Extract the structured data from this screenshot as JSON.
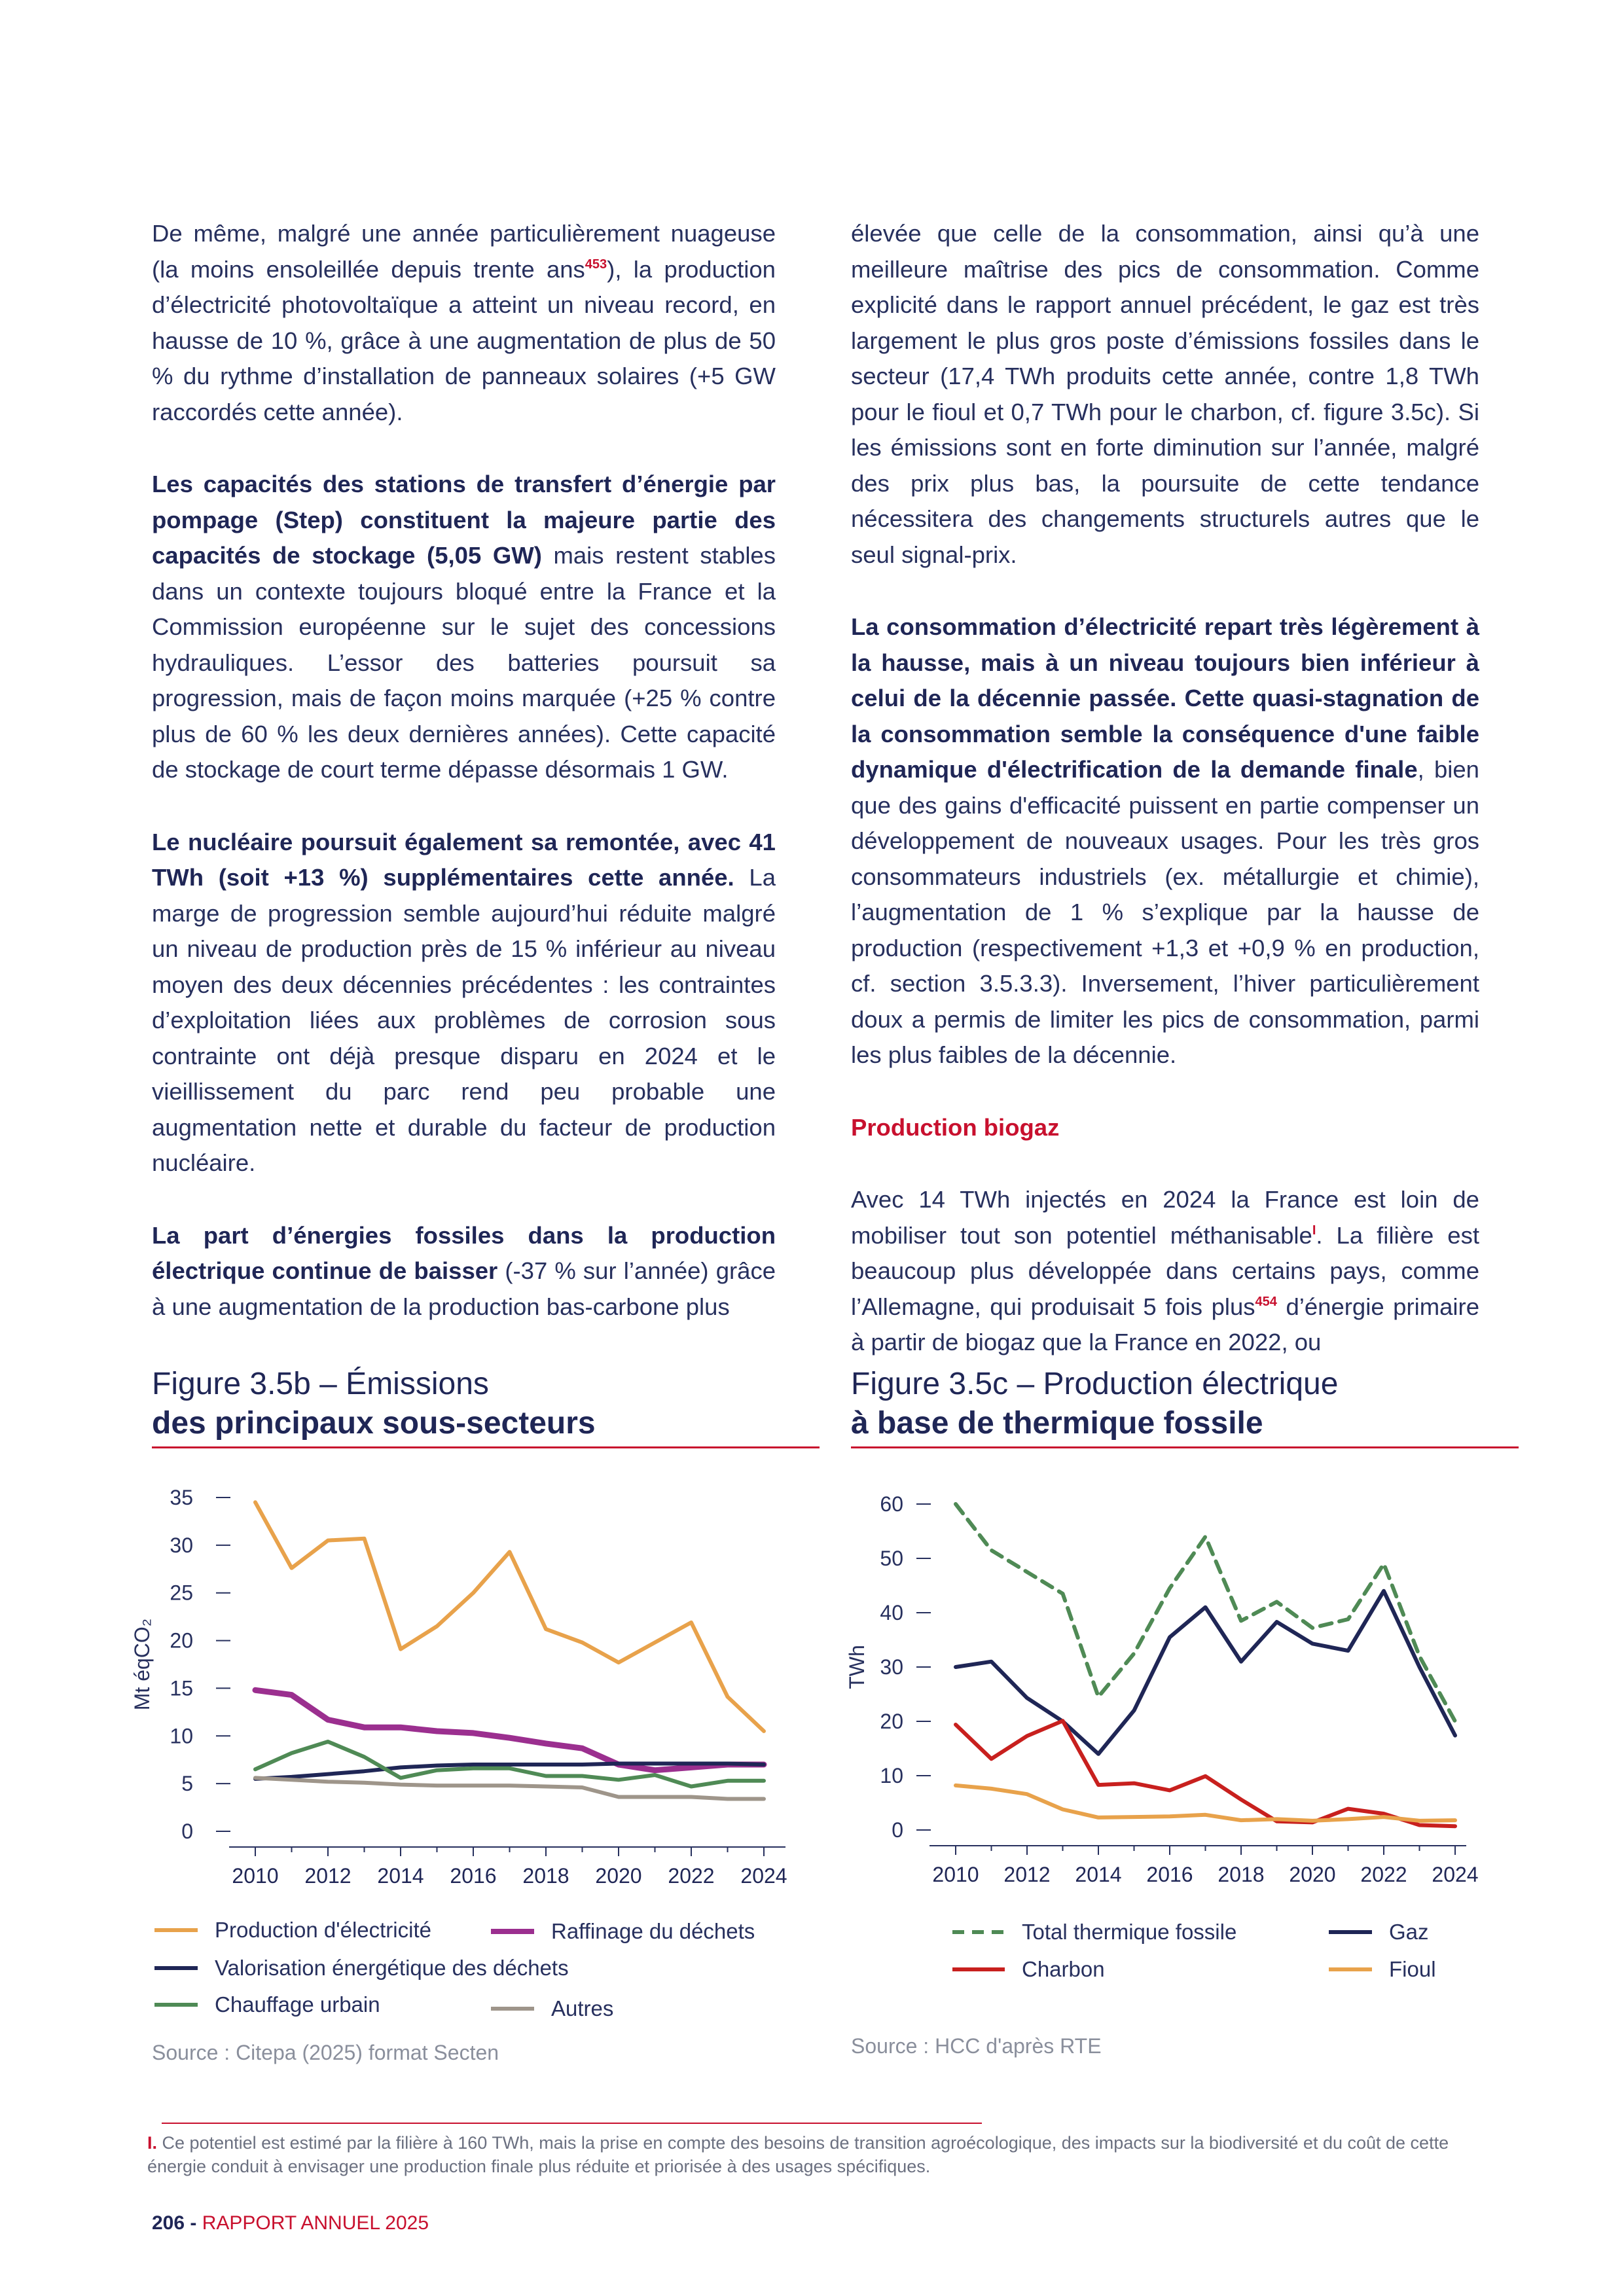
{
  "left_column": {
    "p1": "De même, malgré une année particulièrement nuageuse (la moins ensoleillée depuis trente ans",
    "p1_ref": "453",
    "p1_rest": "), la production d’électricité photovoltaïque a atteint un niveau record, en hausse de 10 %, grâce à une augmentation de plus de 50 % du rythme d’installation de panneaux solaires (+5 GW raccordés cette année).",
    "p2_bold": "Les capacités des stations de transfert d’énergie par pompage (Step) constituent la majeure partie des capacités de stockage (5,05 GW)",
    "p2_rest": " mais restent stables dans un contexte toujours bloqué entre la France et la Commission européenne sur le sujet des concessions hydrauliques. L’essor des batteries poursuit sa progression, mais de façon moins marquée (+25 % contre plus de 60 % les deux dernières années). Cette capacité de stockage de court terme dépasse désormais 1 GW.",
    "p3_bold": "Le nucléaire poursuit également sa remontée, avec 41 TWh (soit +13 %) supplémentaires cette année.",
    "p3_rest": " La marge de progression semble aujourd’hui réduite malgré un niveau de production près de 15 % inférieur au niveau moyen des deux décennies précédentes : les contraintes d’exploitation liées aux problèmes de corrosion sous contrainte ont déjà presque disparu en 2024 et le vieillissement du parc rend peu probable une augmentation nette et durable du facteur de production nucléaire.",
    "p4_bold": "La part d’énergies fossiles dans la production électrique continue de baisser",
    "p4_rest": " (-37 % sur l’année) grâce à une augmentation de la production bas-carbone plus"
  },
  "right_column": {
    "p1": "élevée que celle de la consommation, ainsi qu’à une meilleure maîtrise des pics de consommation. Comme explicité dans le rapport annuel précédent, le gaz est très largement le plus gros poste d’émissions fossiles dans le secteur (17,4 TWh produits cette année, contre 1,8 TWh pour le fioul et 0,7 TWh pour le charbon, cf. figure 3.5c). Si les émissions sont en forte diminution sur l’année, malgré des prix plus bas, la poursuite de cette tendance nécessitera des changements structurels autres que le seul signal-prix.",
    "p2_bold": "La consommation d’électricité repart très légèrement à la hausse, mais à un niveau toujours bien inférieur à celui de la décennie passée. Cette quasi-stagnation de la consommation semble la conséquence d'une faible dynamique d'électrification de la demande finale",
    "p2_rest": ", bien que des gains d'efficacité puissent en partie compenser un développement de nouveaux usages. Pour les très gros consommateurs industriels (ex. métallurgie et chimie), l’augmentation de 1 % s’explique par la hausse de production (respectivement +1,3 et +0,9 % en production, cf. section 3.5.3.3). Inversement, l’hiver particulièrement doux a permis de limiter les pics de consommation, parmi les plus faibles de la décennie.",
    "subhead": "Production biogaz",
    "p3_a": "Avec 14 TWh injectés en 2024 la France est loin de mobiliser tout son potentiel méthanisable",
    "p3_ref1": "I",
    "p3_b": ". La filière est beaucoup plus développée dans certains pays, comme l’Allemagne, qui produisait 5 fois plus",
    "p3_ref2": "454",
    "p3_c": " d’énergie primaire à partir de biogaz que la France en 2022, ou"
  },
  "fig_b": {
    "title_line1": "Figure 3.5b – Émissions",
    "title_line2": "des principaux sous-secteurs",
    "ylabel": "Mt éqCO₂",
    "source": "Source : Citepa (2025) format Secten",
    "legend": [
      "Production d'électricité",
      "Raffinage du déchets",
      "Valorisation énergétique des déchets",
      "Chauffage urbain",
      "Autres"
    ]
  },
  "fig_c": {
    "title_line1": "Figure 3.5c – Production électrique",
    "title_line2": "à base de thermique fossile",
    "ylabel": "TWh",
    "source": "Source : HCC d'après RTE",
    "legend": [
      "Total thermique fossile",
      "Gaz",
      "Charbon",
      "Fioul"
    ]
  },
  "chart_data": [
    {
      "type": "line",
      "title": "Figure 3.5b – Émissions des principaux sous-secteurs",
      "ylabel": "Mt éqCO₂",
      "ylim": [
        0,
        35
      ],
      "yticks": [
        0,
        5,
        10,
        15,
        20,
        25,
        30,
        35
      ],
      "xticks": [
        2010,
        2012,
        2014,
        2016,
        2018,
        2020,
        2022,
        2024
      ],
      "x": [
        2010,
        2011,
        2012,
        2013,
        2014,
        2015,
        2016,
        2017,
        2018,
        2019,
        2020,
        2021,
        2022,
        2023,
        2024
      ],
      "series": [
        {
          "name": "Production d'électricité",
          "color": "#e8a24b",
          "style": "solid",
          "values": [
            34.5,
            27.6,
            30.5,
            30.7,
            19.1,
            21.5,
            25.0,
            29.3,
            21.2,
            19.8,
            17.7,
            19.8,
            21.9,
            14.1,
            10.5
          ]
        },
        {
          "name": "Raffinage du déchets",
          "color": "#9b2f8f",
          "style": "solid",
          "values": [
            14.8,
            14.3,
            11.7,
            10.9,
            10.9,
            10.5,
            10.3,
            9.8,
            9.2,
            8.7,
            7.0,
            6.4,
            6.7,
            7.0,
            7.0
          ]
        },
        {
          "name": "Valorisation énergétique des déchets",
          "color": "#1f2656",
          "style": "solid",
          "values": [
            5.5,
            5.7,
            6.0,
            6.3,
            6.7,
            6.9,
            7.0,
            7.0,
            7.0,
            7.0,
            7.1,
            7.1,
            7.1,
            7.1,
            7.0
          ]
        },
        {
          "name": "Chauffage urbain",
          "color": "#4f8a55",
          "style": "solid",
          "values": [
            6.5,
            8.2,
            9.4,
            7.8,
            5.6,
            6.4,
            6.6,
            6.6,
            5.8,
            5.8,
            5.4,
            5.9,
            4.7,
            5.3,
            5.3
          ]
        },
        {
          "name": "Autres",
          "color": "#9e958a",
          "style": "solid",
          "values": [
            5.6,
            5.4,
            5.2,
            5.1,
            4.9,
            4.8,
            4.8,
            4.8,
            4.7,
            4.6,
            3.6,
            3.6,
            3.6,
            3.4,
            3.4
          ]
        }
      ]
    },
    {
      "type": "line",
      "title": "Figure 3.5c – Production électrique à base de thermique fossile",
      "ylabel": "TWh",
      "ylim": [
        0,
        60
      ],
      "yticks": [
        0,
        10,
        20,
        30,
        40,
        50,
        60
      ],
      "xticks": [
        2010,
        2012,
        2014,
        2016,
        2018,
        2020,
        2022,
        2024
      ],
      "x": [
        2010,
        2011,
        2012,
        2013,
        2014,
        2015,
        2016,
        2017,
        2018,
        2019,
        2020,
        2021,
        2022,
        2023,
        2024
      ],
      "series": [
        {
          "name": "Total thermique fossile",
          "color": "#4f8a55",
          "style": "dashed",
          "values": [
            60,
            51.5,
            47.5,
            43.5,
            24.5,
            32.5,
            44.5,
            54,
            38.5,
            42,
            37.2,
            38.8,
            49,
            32,
            20
          ]
        },
        {
          "name": "Gaz",
          "color": "#1f2656",
          "style": "solid",
          "values": [
            30,
            31,
            24.3,
            20,
            14,
            22,
            35.5,
            41,
            31,
            38.3,
            34.3,
            33,
            44,
            30,
            17.4
          ]
        },
        {
          "name": "Charbon",
          "color": "#c8201e",
          "style": "solid",
          "values": [
            19.4,
            13.1,
            17.3,
            20.1,
            8.3,
            8.6,
            7.3,
            9.9,
            5.6,
            1.6,
            1.4,
            3.9,
            3.0,
            0.9,
            0.7
          ]
        },
        {
          "name": "Fioul",
          "color": "#e8a24b",
          "style": "solid",
          "values": [
            8.2,
            7.6,
            6.6,
            3.8,
            2.3,
            2.4,
            2.5,
            2.8,
            1.8,
            2.0,
            1.7,
            2.0,
            2.4,
            1.7,
            1.8
          ]
        }
      ]
    }
  ],
  "footnote": {
    "mark": "I.",
    "text": "Ce potentiel est estimé par la filière à 160 TWh, mais la prise en compte des besoins de transition agroécologique, des impacts sur la biodiversité et du coût de cette énergie conduit à envisager une production finale plus réduite et priorisée à des usages spécifiques."
  },
  "page_footer": {
    "page_number": "206 -",
    "report_title": "RAPPORT ANNUEL 2025"
  }
}
